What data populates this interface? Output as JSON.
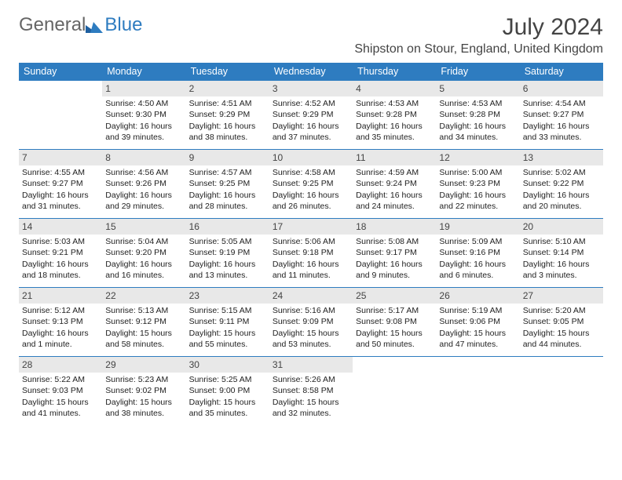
{
  "logo": {
    "part1": "General",
    "part2": "Blue"
  },
  "month_title": "July 2024",
  "location": "Shipston on Stour, England, United Kingdom",
  "colors": {
    "header_bg": "#2e7cc0",
    "header_text": "#ffffff",
    "daynum_bg": "#e8e8e8",
    "border": "#2e7cc0",
    "text": "#222222"
  },
  "weekdays": [
    "Sunday",
    "Monday",
    "Tuesday",
    "Wednesday",
    "Thursday",
    "Friday",
    "Saturday"
  ],
  "rows": [
    [
      {
        "empty": true
      },
      {
        "day": "1",
        "sunrise": "Sunrise: 4:50 AM",
        "sunset": "Sunset: 9:30 PM",
        "daylight1": "Daylight: 16 hours",
        "daylight2": "and 39 minutes."
      },
      {
        "day": "2",
        "sunrise": "Sunrise: 4:51 AM",
        "sunset": "Sunset: 9:29 PM",
        "daylight1": "Daylight: 16 hours",
        "daylight2": "and 38 minutes."
      },
      {
        "day": "3",
        "sunrise": "Sunrise: 4:52 AM",
        "sunset": "Sunset: 9:29 PM",
        "daylight1": "Daylight: 16 hours",
        "daylight2": "and 37 minutes."
      },
      {
        "day": "4",
        "sunrise": "Sunrise: 4:53 AM",
        "sunset": "Sunset: 9:28 PM",
        "daylight1": "Daylight: 16 hours",
        "daylight2": "and 35 minutes."
      },
      {
        "day": "5",
        "sunrise": "Sunrise: 4:53 AM",
        "sunset": "Sunset: 9:28 PM",
        "daylight1": "Daylight: 16 hours",
        "daylight2": "and 34 minutes."
      },
      {
        "day": "6",
        "sunrise": "Sunrise: 4:54 AM",
        "sunset": "Sunset: 9:27 PM",
        "daylight1": "Daylight: 16 hours",
        "daylight2": "and 33 minutes."
      }
    ],
    [
      {
        "day": "7",
        "sunrise": "Sunrise: 4:55 AM",
        "sunset": "Sunset: 9:27 PM",
        "daylight1": "Daylight: 16 hours",
        "daylight2": "and 31 minutes."
      },
      {
        "day": "8",
        "sunrise": "Sunrise: 4:56 AM",
        "sunset": "Sunset: 9:26 PM",
        "daylight1": "Daylight: 16 hours",
        "daylight2": "and 29 minutes."
      },
      {
        "day": "9",
        "sunrise": "Sunrise: 4:57 AM",
        "sunset": "Sunset: 9:25 PM",
        "daylight1": "Daylight: 16 hours",
        "daylight2": "and 28 minutes."
      },
      {
        "day": "10",
        "sunrise": "Sunrise: 4:58 AM",
        "sunset": "Sunset: 9:25 PM",
        "daylight1": "Daylight: 16 hours",
        "daylight2": "and 26 minutes."
      },
      {
        "day": "11",
        "sunrise": "Sunrise: 4:59 AM",
        "sunset": "Sunset: 9:24 PM",
        "daylight1": "Daylight: 16 hours",
        "daylight2": "and 24 minutes."
      },
      {
        "day": "12",
        "sunrise": "Sunrise: 5:00 AM",
        "sunset": "Sunset: 9:23 PM",
        "daylight1": "Daylight: 16 hours",
        "daylight2": "and 22 minutes."
      },
      {
        "day": "13",
        "sunrise": "Sunrise: 5:02 AM",
        "sunset": "Sunset: 9:22 PM",
        "daylight1": "Daylight: 16 hours",
        "daylight2": "and 20 minutes."
      }
    ],
    [
      {
        "day": "14",
        "sunrise": "Sunrise: 5:03 AM",
        "sunset": "Sunset: 9:21 PM",
        "daylight1": "Daylight: 16 hours",
        "daylight2": "and 18 minutes."
      },
      {
        "day": "15",
        "sunrise": "Sunrise: 5:04 AM",
        "sunset": "Sunset: 9:20 PM",
        "daylight1": "Daylight: 16 hours",
        "daylight2": "and 16 minutes."
      },
      {
        "day": "16",
        "sunrise": "Sunrise: 5:05 AM",
        "sunset": "Sunset: 9:19 PM",
        "daylight1": "Daylight: 16 hours",
        "daylight2": "and 13 minutes."
      },
      {
        "day": "17",
        "sunrise": "Sunrise: 5:06 AM",
        "sunset": "Sunset: 9:18 PM",
        "daylight1": "Daylight: 16 hours",
        "daylight2": "and 11 minutes."
      },
      {
        "day": "18",
        "sunrise": "Sunrise: 5:08 AM",
        "sunset": "Sunset: 9:17 PM",
        "daylight1": "Daylight: 16 hours",
        "daylight2": "and 9 minutes."
      },
      {
        "day": "19",
        "sunrise": "Sunrise: 5:09 AM",
        "sunset": "Sunset: 9:16 PM",
        "daylight1": "Daylight: 16 hours",
        "daylight2": "and 6 minutes."
      },
      {
        "day": "20",
        "sunrise": "Sunrise: 5:10 AM",
        "sunset": "Sunset: 9:14 PM",
        "daylight1": "Daylight: 16 hours",
        "daylight2": "and 3 minutes."
      }
    ],
    [
      {
        "day": "21",
        "sunrise": "Sunrise: 5:12 AM",
        "sunset": "Sunset: 9:13 PM",
        "daylight1": "Daylight: 16 hours",
        "daylight2": "and 1 minute."
      },
      {
        "day": "22",
        "sunrise": "Sunrise: 5:13 AM",
        "sunset": "Sunset: 9:12 PM",
        "daylight1": "Daylight: 15 hours",
        "daylight2": "and 58 minutes."
      },
      {
        "day": "23",
        "sunrise": "Sunrise: 5:15 AM",
        "sunset": "Sunset: 9:11 PM",
        "daylight1": "Daylight: 15 hours",
        "daylight2": "and 55 minutes."
      },
      {
        "day": "24",
        "sunrise": "Sunrise: 5:16 AM",
        "sunset": "Sunset: 9:09 PM",
        "daylight1": "Daylight: 15 hours",
        "daylight2": "and 53 minutes."
      },
      {
        "day": "25",
        "sunrise": "Sunrise: 5:17 AM",
        "sunset": "Sunset: 9:08 PM",
        "daylight1": "Daylight: 15 hours",
        "daylight2": "and 50 minutes."
      },
      {
        "day": "26",
        "sunrise": "Sunrise: 5:19 AM",
        "sunset": "Sunset: 9:06 PM",
        "daylight1": "Daylight: 15 hours",
        "daylight2": "and 47 minutes."
      },
      {
        "day": "27",
        "sunrise": "Sunrise: 5:20 AM",
        "sunset": "Sunset: 9:05 PM",
        "daylight1": "Daylight: 15 hours",
        "daylight2": "and 44 minutes."
      }
    ],
    [
      {
        "day": "28",
        "sunrise": "Sunrise: 5:22 AM",
        "sunset": "Sunset: 9:03 PM",
        "daylight1": "Daylight: 15 hours",
        "daylight2": "and 41 minutes."
      },
      {
        "day": "29",
        "sunrise": "Sunrise: 5:23 AM",
        "sunset": "Sunset: 9:02 PM",
        "daylight1": "Daylight: 15 hours",
        "daylight2": "and 38 minutes."
      },
      {
        "day": "30",
        "sunrise": "Sunrise: 5:25 AM",
        "sunset": "Sunset: 9:00 PM",
        "daylight1": "Daylight: 15 hours",
        "daylight2": "and 35 minutes."
      },
      {
        "day": "31",
        "sunrise": "Sunrise: 5:26 AM",
        "sunset": "Sunset: 8:58 PM",
        "daylight1": "Daylight: 15 hours",
        "daylight2": "and 32 minutes."
      },
      {
        "empty": true
      },
      {
        "empty": true
      },
      {
        "empty": true
      }
    ]
  ]
}
